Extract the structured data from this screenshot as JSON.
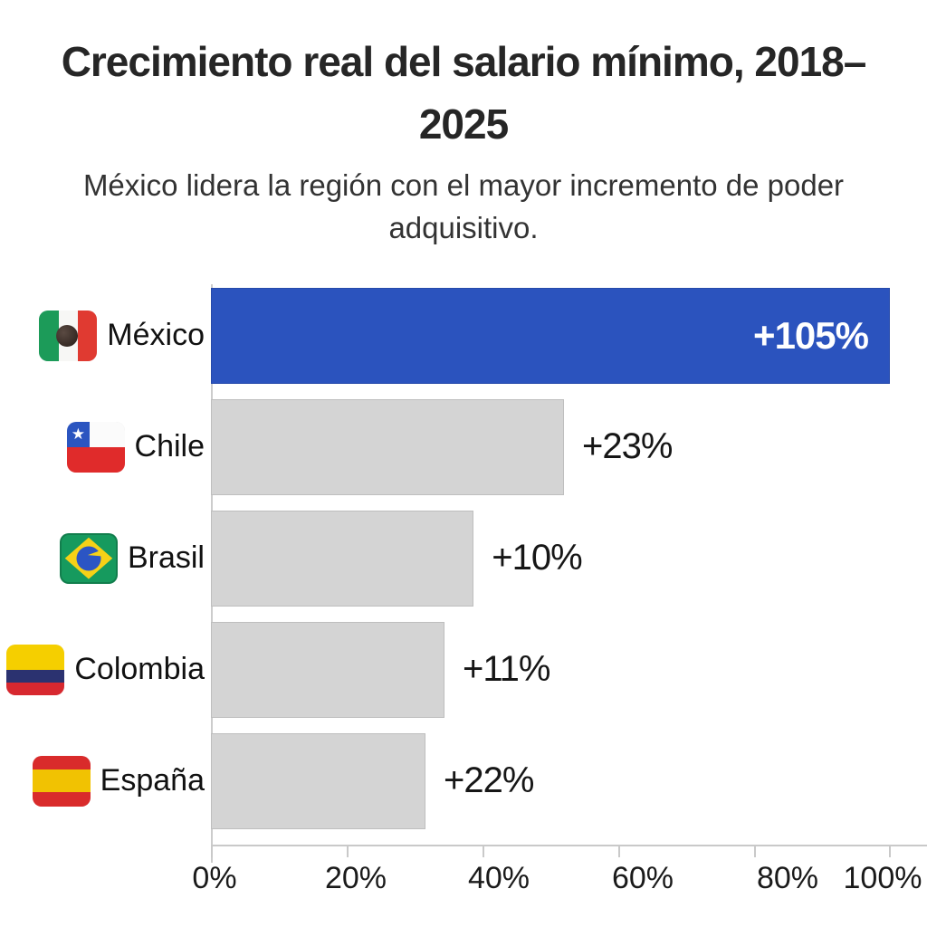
{
  "title": "Crecimiento real del salario mínimo, 2018–2025",
  "subtitle": "México lidera la región con el mayor incremento de poder adquisitivo.",
  "chart_data": {
    "type": "bar",
    "orientation": "horizontal",
    "title": "Crecimiento real del salario mínimo, 2018–2025",
    "subtitle": "México lidera la región con el mayor incremento de poder adquisitivo.",
    "categories": [
      "México",
      "Chile",
      "Brasil",
      "Colombia",
      "España"
    ],
    "values": [
      105,
      23,
      10,
      11,
      22
    ],
    "value_labels": [
      "+105%",
      "+23%",
      "+10%",
      "+11%",
      "+22%"
    ],
    "bar_visual_pct": [
      100,
      52,
      38.7,
      34.4,
      31.6
    ],
    "highlight_index": 0,
    "flags": [
      "mexico-flag",
      "chile-flag",
      "brasil-flag",
      "colombia-flag",
      "espana-flag"
    ],
    "colors": {
      "highlight_bar": "#2b53be",
      "default_bar": "#d4d4d4",
      "label_inside": "#ffffff",
      "label_outside": "#161616",
      "axis": "#c9c9c9"
    },
    "x_axis": {
      "range": [
        0,
        100
      ],
      "tick_labels": [
        "0%",
        "20%",
        "40%",
        "60%",
        "80%",
        "100%"
      ]
    },
    "legend": "none",
    "grid": "off"
  }
}
